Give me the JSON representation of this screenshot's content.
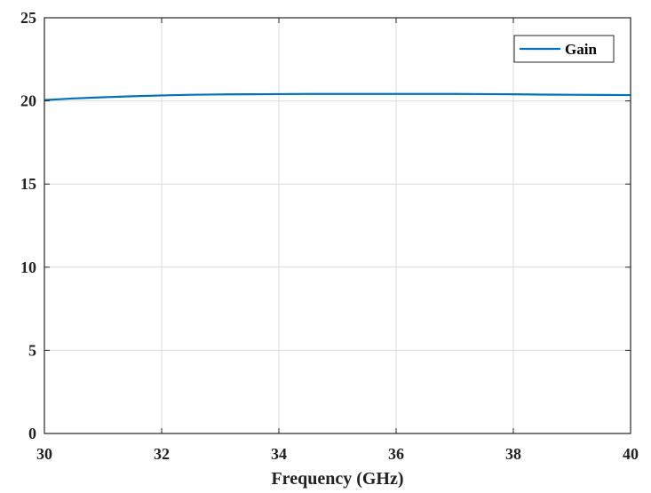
{
  "chart_data": {
    "type": "line",
    "title": "",
    "xlabel": "Frequency (GHz)",
    "ylabel": "",
    "xlim": [
      30,
      40
    ],
    "ylim": [
      0,
      25
    ],
    "xticks": [
      30,
      32,
      34,
      36,
      38,
      40
    ],
    "yticks": [
      0,
      5,
      10,
      15,
      20,
      25
    ],
    "grid": true,
    "legend_position": "top-right",
    "series": [
      {
        "name": "Gain",
        "color": "#0072BD",
        "x": [
          30,
          30.5,
          31,
          31.5,
          32,
          32.5,
          33,
          33.5,
          34,
          34.5,
          35,
          35.5,
          36,
          36.5,
          37,
          37.5,
          38,
          38.5,
          39,
          39.5,
          40
        ],
        "y": [
          20.05,
          20.15,
          20.22,
          20.28,
          20.33,
          20.37,
          20.39,
          20.4,
          20.41,
          20.42,
          20.42,
          20.42,
          20.42,
          20.42,
          20.42,
          20.41,
          20.4,
          20.38,
          20.37,
          20.36,
          20.35
        ]
      }
    ]
  }
}
